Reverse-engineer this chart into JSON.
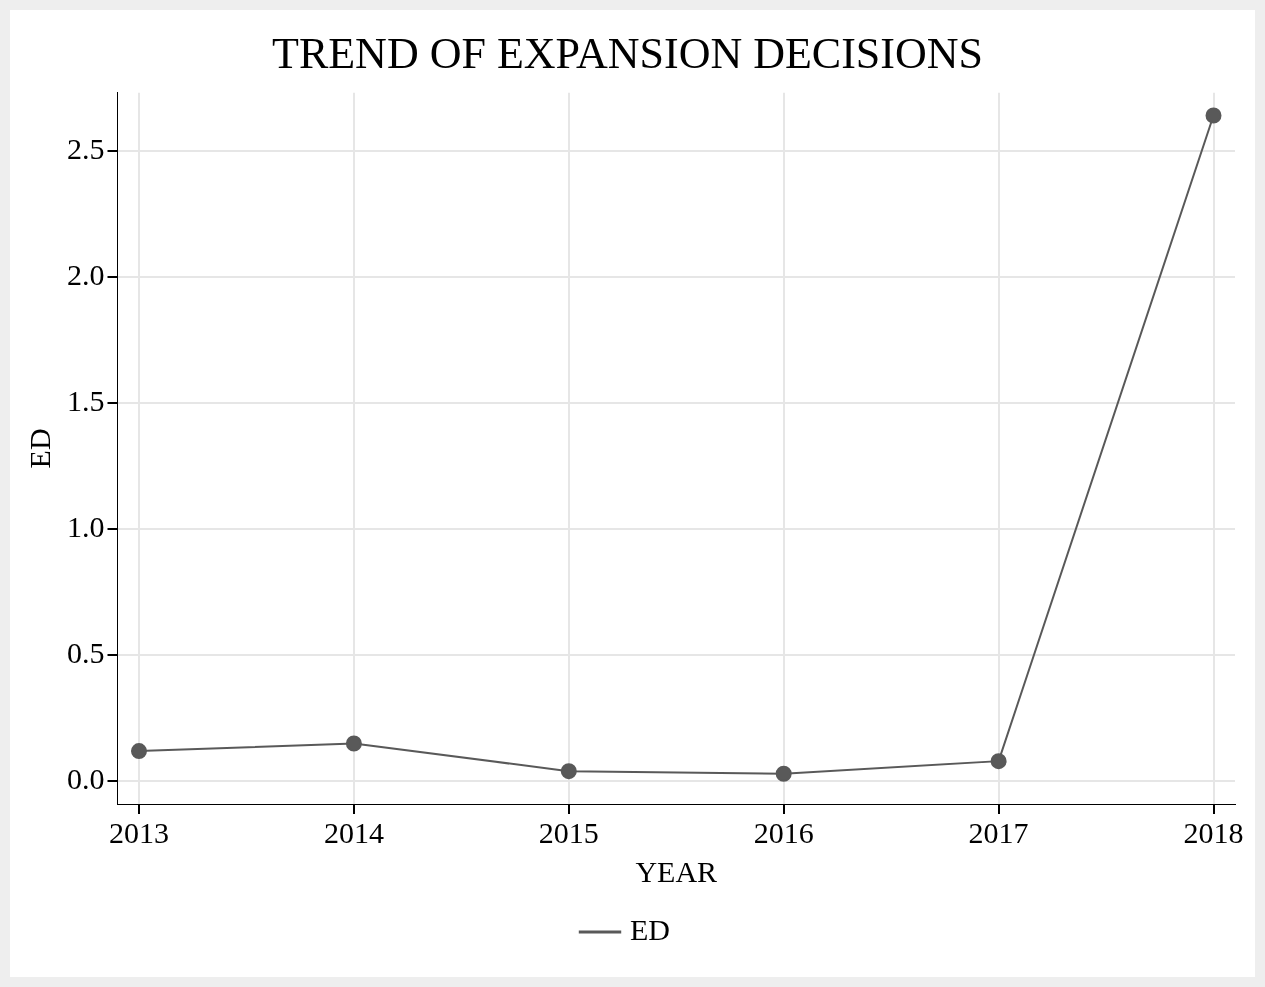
{
  "chart_data": {
    "type": "line",
    "title": "TREND OF EXPANSION DECISIONS",
    "xlabel": "YEAR",
    "ylabel": "ED",
    "x": [
      2013,
      2014,
      2015,
      2016,
      2017,
      2018
    ],
    "series": [
      {
        "name": "ED",
        "color": "#595959",
        "values": [
          0.12,
          0.15,
          0.04,
          0.03,
          0.08,
          2.64
        ]
      }
    ],
    "xlim": [
      2012.9,
      2018.1
    ],
    "xticks": [
      2013,
      2014,
      2015,
      2016,
      2017,
      2018
    ],
    "ylim": [
      -0.09,
      2.73
    ],
    "yticks": [
      {
        "value": 0,
        "label": "0.0"
      },
      {
        "value": 0.5,
        "label": "0.5"
      },
      {
        "value": 1,
        "label": "1.0"
      },
      {
        "value": 1.5,
        "label": "1.5"
      },
      {
        "value": 2,
        "label": "2.0"
      },
      {
        "value": 2.5,
        "label": "2.5"
      }
    ],
    "grid": true,
    "legend": "bottom",
    "marker": "circle",
    "line_style": "solid"
  }
}
